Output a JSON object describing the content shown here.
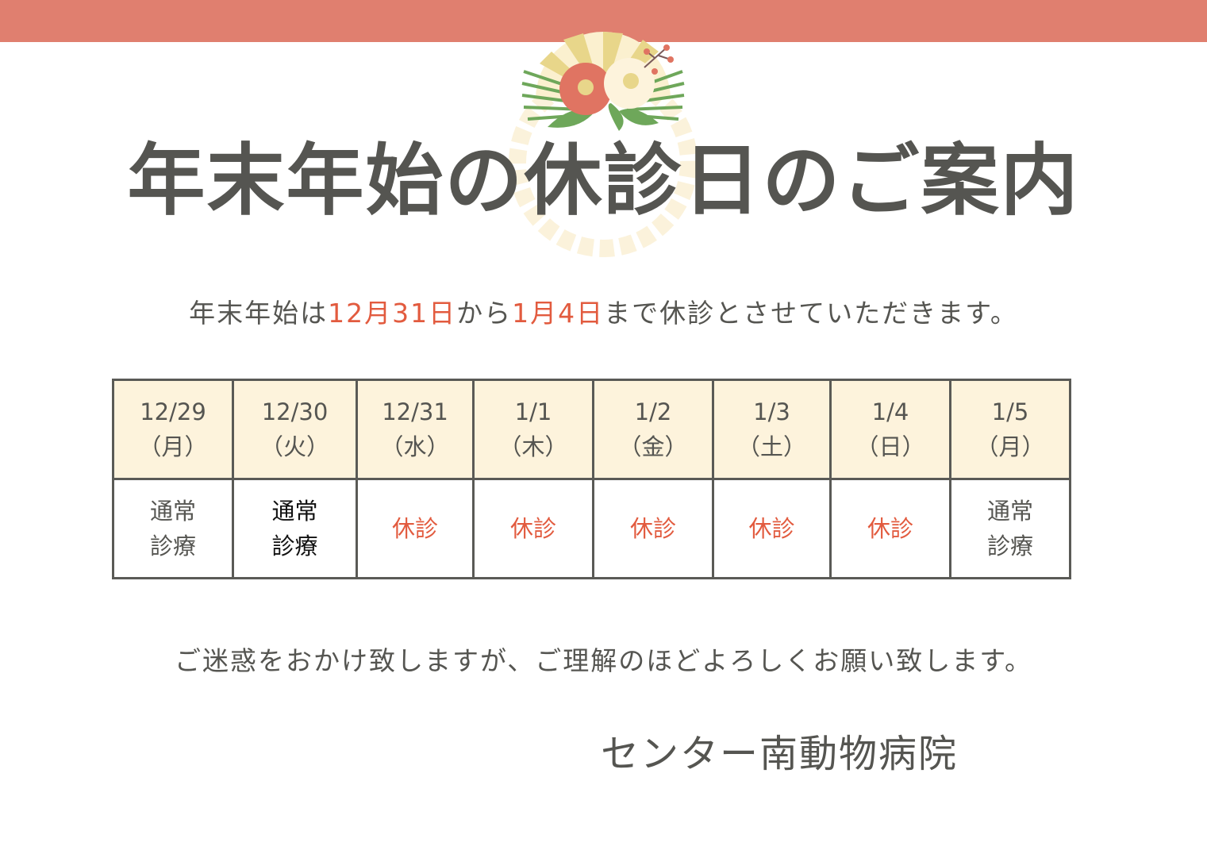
{
  "colors": {
    "banner": "#e07f6f",
    "accent_red": "#e25b3f",
    "header_bg": "#fdf3dc",
    "text": "#555551"
  },
  "title": "年末年始の休診日のご案内",
  "lead": {
    "prefix": "年末年始は",
    "start": "12月31日",
    "mid": "から",
    "end": "1月4日",
    "suffix": "まで休診とさせていただきます。"
  },
  "schedule": [
    {
      "date": "12/29",
      "day": "（月）",
      "status": "通常診療",
      "line1": "通常",
      "line2": "診療",
      "closed": false
    },
    {
      "date": "12/30",
      "day": "（火）",
      "status": "通常診療",
      "line1": "通常",
      "line2": "診療",
      "closed": false
    },
    {
      "date": "12/31",
      "day": "（水）",
      "status": "休診",
      "closed": true
    },
    {
      "date": "1/1",
      "day": "（木）",
      "status": "休診",
      "closed": true
    },
    {
      "date": "1/2",
      "day": "（金）",
      "status": "休診",
      "closed": true
    },
    {
      "date": "1/3",
      "day": "（土）",
      "status": "休診",
      "closed": true
    },
    {
      "date": "1/4",
      "day": "（日）",
      "status": "休診",
      "closed": true
    },
    {
      "date": "1/5",
      "day": "（月）",
      "status": "通常診療",
      "line1": "通常",
      "line2": "診療",
      "closed": false
    }
  ],
  "closing": "ご迷惑をおかけ致しますが、ご理解のほどよろしくお願い致します。",
  "signature": "センター南動物病院"
}
